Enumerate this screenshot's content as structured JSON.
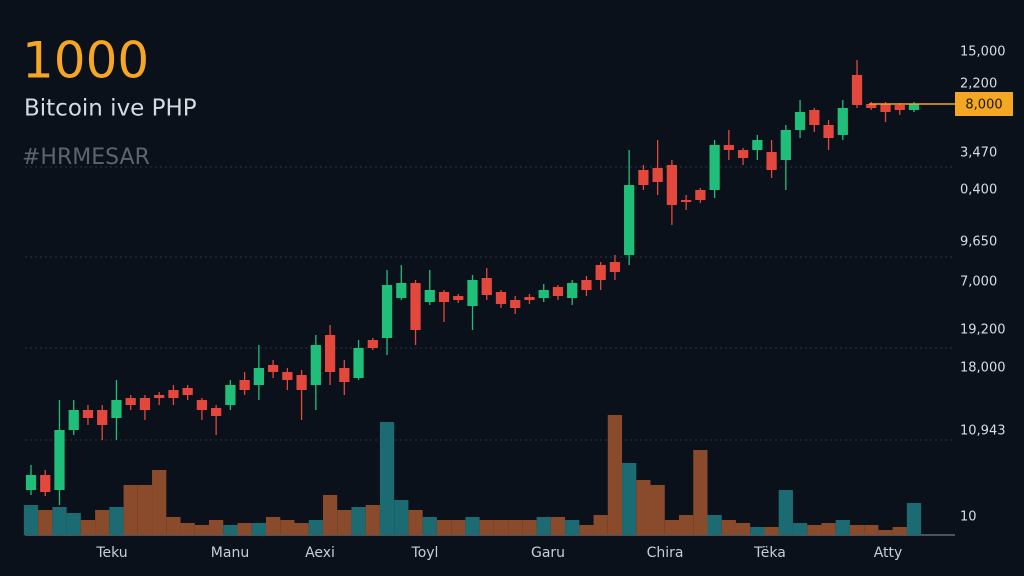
{
  "chart_data": {
    "type": "candlestick",
    "title": "1000",
    "subtitle": "Bitcoin ive PHP",
    "tag": "#HRMESAR",
    "categories": [
      "Teku",
      "Manu",
      "Aexi",
      "Toyl",
      "Garu",
      "Chira",
      "Tëka",
      "Atty"
    ],
    "y_axis_labels": [
      "15,000",
      "2,200",
      "3,470",
      "0,400",
      "9,650",
      "7,000",
      "19,200",
      "18,000",
      "10,943",
      "10"
    ],
    "current_price_label": "8,000",
    "ylim": [
      0,
      500
    ],
    "vlim": [
      0,
      120
    ],
    "up_color": "#1fbf7a",
    "down_color": "#e4473c",
    "volume_up_color": "#1d6b72",
    "volume_down_color": "#8a4a2c",
    "current_price_color": "#f5a623",
    "open": [
      50,
      65,
      50,
      110,
      130,
      130,
      122,
      142,
      142,
      145,
      150,
      152,
      140,
      132,
      135,
      160,
      155,
      175,
      168,
      165,
      155,
      205,
      172,
      162,
      200,
      202,
      242,
      257,
      238,
      248,
      244,
      234,
      262,
      248,
      240,
      243,
      242,
      253,
      242,
      260,
      275,
      278,
      285,
      370,
      372,
      375,
      340,
      350,
      350,
      395,
      390,
      390,
      388,
      380,
      410,
      430,
      415,
      405,
      465,
      436,
      436,
      435,
      430
    ],
    "high": [
      75,
      70,
      140,
      140,
      135,
      135,
      160,
      145,
      145,
      148,
      155,
      155,
      142,
      135,
      160,
      168,
      195,
      180,
      172,
      170,
      205,
      215,
      180,
      200,
      202,
      270,
      275,
      260,
      270,
      250,
      246,
      265,
      272,
      250,
      244,
      246,
      256,
      255,
      260,
      264,
      278,
      285,
      390,
      375,
      400,
      380,
      345,
      352,
      400,
      410,
      392,
      405,
      400,
      415,
      440,
      432,
      420,
      440,
      480,
      438,
      438,
      437,
      438
    ],
    "low": [
      45,
      44,
      35,
      105,
      115,
      100,
      100,
      130,
      120,
      135,
      135,
      140,
      120,
      105,
      130,
      145,
      140,
      162,
      150,
      120,
      130,
      155,
      145,
      160,
      190,
      185,
      240,
      195,
      235,
      218,
      237,
      210,
      240,
      232,
      226,
      236,
      238,
      240,
      235,
      244,
      250,
      260,
      275,
      350,
      345,
      315,
      330,
      337,
      342,
      380,
      375,
      380,
      362,
      350,
      402,
      408,
      390,
      400,
      432,
      430,
      418,
      425,
      428
    ],
    "close": [
      65,
      48,
      110,
      130,
      122,
      115,
      140,
      135,
      130,
      142,
      142,
      145,
      130,
      124,
      155,
      150,
      172,
      168,
      160,
      150,
      195,
      168,
      158,
      192,
      192,
      255,
      257,
      210,
      250,
      238,
      240,
      260,
      245,
      236,
      232,
      240,
      250,
      244,
      257,
      250,
      260,
      268,
      355,
      355,
      358,
      335,
      338,
      340,
      395,
      390,
      382,
      400,
      370,
      410,
      428,
      415,
      402,
      432,
      435,
      432,
      428,
      430,
      436
    ],
    "volume": [
      30,
      25,
      28,
      22,
      15,
      25,
      28,
      50,
      50,
      65,
      18,
      12,
      10,
      15,
      10,
      12,
      12,
      18,
      15,
      12,
      15,
      40,
      25,
      28,
      30,
      113,
      35,
      25,
      18,
      15,
      15,
      18,
      15,
      15,
      15,
      15,
      18,
      18,
      15,
      10,
      20,
      120,
      72,
      55,
      50,
      15,
      20,
      85,
      20,
      15,
      12,
      8,
      8,
      45,
      12,
      10,
      12,
      15,
      10,
      10,
      5,
      8,
      32
    ]
  }
}
